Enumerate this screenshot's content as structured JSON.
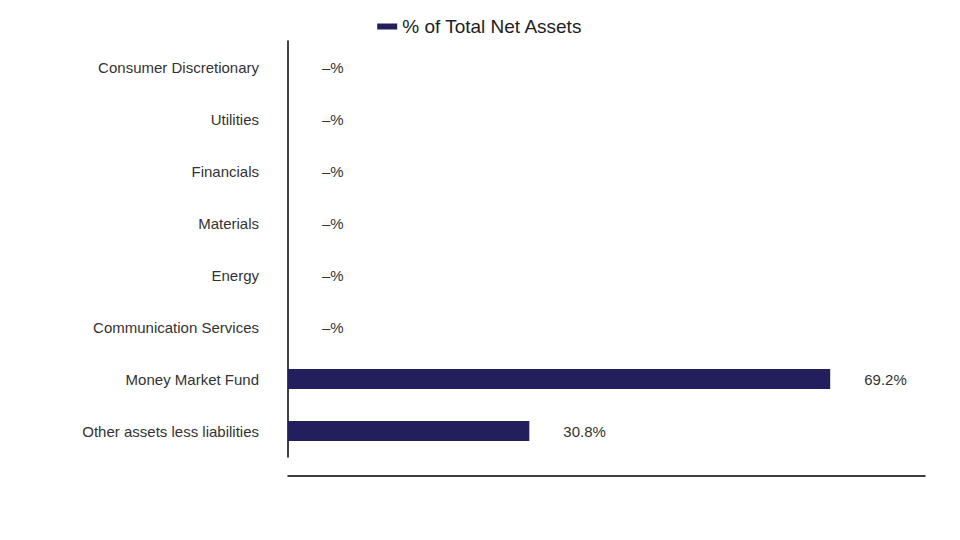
{
  "chart_data": {
    "type": "bar",
    "orientation": "horizontal",
    "categories": [
      "Consumer Discretionary",
      "Utilities",
      "Financials",
      "Materials",
      "Energy",
      "Communication Services",
      "Money Market Fund",
      "Other assets less liabilities"
    ],
    "series": [
      {
        "name": "% of Total Net Assets",
        "color": "#221f5c",
        "values": [
          0,
          0,
          0,
          0,
          0,
          0,
          69.2,
          30.8
        ],
        "value_labels": [
          "–%",
          "–%",
          "–%",
          "–%",
          "–%",
          "–%",
          "69.2%",
          "30.8%"
        ]
      }
    ],
    "xlim": [
      0,
      81.3
    ],
    "grid": false,
    "legend": "top",
    "data_labels": true,
    "tick_labels": "y"
  }
}
